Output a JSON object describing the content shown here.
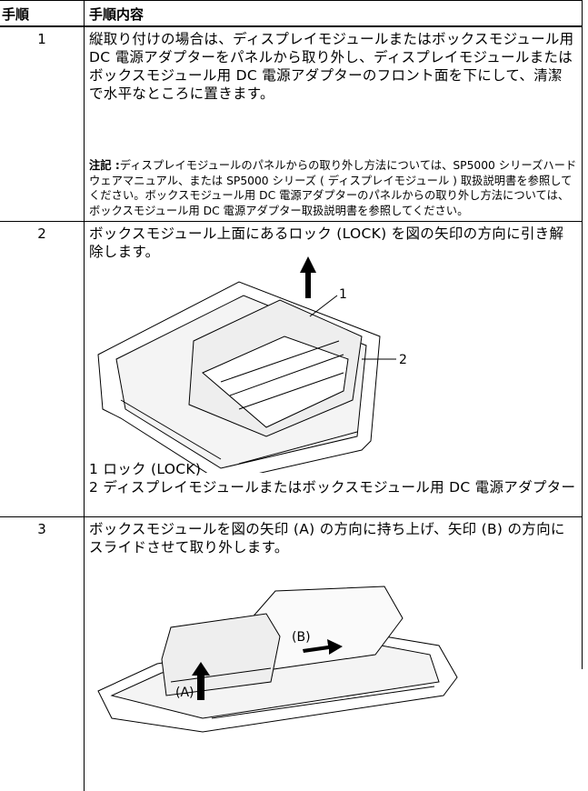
{
  "header": {
    "step": "手順",
    "content": "手順内容"
  },
  "steps": [
    {
      "number": "1",
      "text": "縦取り付けの場合は、ディスプレイモジュールまたはボックスモジュール用 DC 電源アダプターをパネルから取り外し、ディスプレイモジュールまたはボックスモジュール用 DC 電源アダプターのフロント面を下にして、清潔で水平なところに置きます。",
      "note_label": "注記 :",
      "note": "ディスプレイモジュールのパネルからの取り外し方法については、SP5000 シリーズハードウェアマニュアル、または SP5000 シリーズ ( ディスプレイモジュール ) 取扱説明書を参照してください。ボックスモジュール用 DC 電源アダプターのパネルからの取り外し方法については、ボックスモジュール用 DC 電源アダプター取扱説明書を参照してください。"
    },
    {
      "number": "2",
      "text": "ボックスモジュール上面にあるロック (LOCK) を図の矢印の方向に引き解除します。",
      "figure_callouts": [
        "1",
        "2"
      ],
      "legend": [
        "1 ロック (LOCK)",
        "2 ディスプレイモジュールまたはボックスモジュール用 DC 電源アダプター"
      ]
    },
    {
      "number": "3",
      "text": "ボックスモジュールを図の矢印 (A) の方向に持ち上げ、矢印 (B) の方向にスライドさせて取り外します。",
      "figure_labels": [
        "(A)",
        "(B)"
      ]
    }
  ]
}
